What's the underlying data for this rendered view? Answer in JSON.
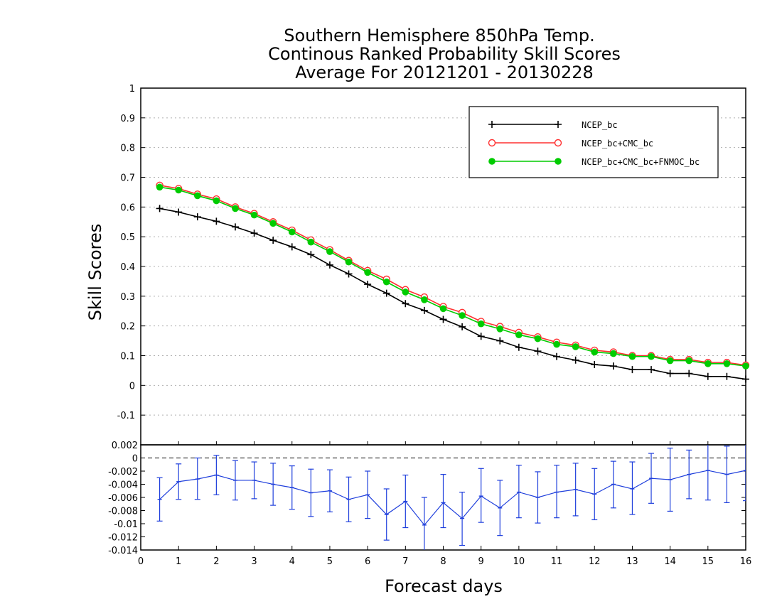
{
  "chart_data": [
    {
      "type": "line",
      "title": [
        "Southern Hemisphere 850hPa Temp.",
        "Continous Ranked Probability Skill Scores",
        "Average For 20121201 - 20130228"
      ],
      "xlabel": "Forecast days",
      "ylabel": "Skill Scores",
      "xlim": [
        0,
        16
      ],
      "ylim": [
        -0.2,
        1
      ],
      "x_ticks": [
        "0",
        "1",
        "2",
        "3",
        "4",
        "5",
        "6",
        "7",
        "8",
        "9",
        "10",
        "11",
        "12",
        "13",
        "14",
        "15",
        "16"
      ],
      "y_ticks": [
        "1",
        "0.9",
        "0.8",
        "0.7",
        "0.6",
        "0.5",
        "0.4",
        "0.3",
        "0.2",
        "0.1",
        "0",
        "-0.1"
      ],
      "grid": true,
      "legend_position": "top-right",
      "x": [
        0.5,
        1,
        1.5,
        2,
        2.5,
        3,
        3.5,
        4,
        4.5,
        5,
        5.5,
        6,
        6.5,
        7,
        7.5,
        8,
        8.5,
        9,
        9.5,
        10,
        10.5,
        11,
        11.5,
        12,
        12.5,
        13,
        13.5,
        14,
        14.5,
        15,
        15.5,
        16
      ],
      "series": [
        {
          "name": "NCEP_bc",
          "color": "#000000",
          "marker": "plus",
          "values": [
            0.595,
            0.583,
            0.567,
            0.552,
            0.533,
            0.512,
            0.488,
            0.466,
            0.44,
            0.405,
            0.375,
            0.34,
            0.31,
            0.275,
            0.252,
            0.222,
            0.197,
            0.165,
            0.15,
            0.128,
            0.115,
            0.097,
            0.085,
            0.07,
            0.065,
            0.053,
            0.053,
            0.04,
            0.04,
            0.03,
            0.03,
            0.021
          ]
        },
        {
          "name": "NCEP_bc+CMC_bc",
          "color": "#ff3030",
          "marker": "open-circle",
          "values": [
            0.673,
            0.662,
            0.643,
            0.627,
            0.6,
            0.578,
            0.55,
            0.522,
            0.489,
            0.456,
            0.42,
            0.386,
            0.357,
            0.322,
            0.297,
            0.265,
            0.245,
            0.215,
            0.198,
            0.178,
            0.163,
            0.145,
            0.135,
            0.118,
            0.112,
            0.1,
            0.1,
            0.087,
            0.087,
            0.077,
            0.077,
            0.068
          ]
        },
        {
          "name": "NCEP_bc+CMC_bc+FNMOC_bc",
          "color": "#00cc00",
          "marker": "filled-circle",
          "values": [
            0.667,
            0.657,
            0.638,
            0.621,
            0.595,
            0.573,
            0.545,
            0.516,
            0.482,
            0.45,
            0.415,
            0.38,
            0.348,
            0.314,
            0.288,
            0.258,
            0.235,
            0.207,
            0.19,
            0.17,
            0.157,
            0.138,
            0.13,
            0.112,
            0.107,
            0.097,
            0.097,
            0.083,
            0.083,
            0.073,
            0.073,
            0.065
          ]
        }
      ]
    },
    {
      "type": "line",
      "title": "",
      "xlabel": "Forecast days",
      "ylabel": "",
      "xlim": [
        0,
        16
      ],
      "ylim": [
        -0.014,
        0.002
      ],
      "x_ticks": [
        "0",
        "1",
        "2",
        "3",
        "4",
        "5",
        "6",
        "7",
        "8",
        "9",
        "10",
        "11",
        "12",
        "13",
        "14",
        "15",
        "16"
      ],
      "y_ticks": [
        "0.002",
        "0",
        "-0.002",
        "-0.004",
        "-0.006",
        "-0.008",
        "-0.01",
        "-0.012",
        "-0.014"
      ],
      "reference_line": 0,
      "x": [
        0.5,
        1,
        1.5,
        2,
        2.5,
        3,
        3.5,
        4,
        4.5,
        5,
        5.5,
        6,
        6.5,
        7,
        7.5,
        8,
        8.5,
        9,
        9.5,
        10,
        10.5,
        11,
        11.5,
        12,
        12.5,
        13,
        13.5,
        14,
        14.5,
        15,
        15.5,
        16
      ],
      "series": [
        {
          "name": "",
          "color": "#1f3fdc",
          "marker": "tick",
          "values": [
            -0.0063,
            -0.0036,
            -0.0032,
            -0.0026,
            -0.0034,
            -0.0034,
            -0.004,
            -0.0045,
            -0.0053,
            -0.005,
            -0.0063,
            -0.0056,
            -0.0086,
            -0.0066,
            -0.0102,
            -0.0068,
            -0.0092,
            -0.0058,
            -0.0076,
            -0.0052,
            -0.006,
            -0.0052,
            -0.0048,
            -0.0055,
            -0.004,
            -0.0047,
            -0.0031,
            -0.0033,
            -0.0025,
            -0.0019,
            -0.0025,
            -0.0019
          ],
          "error_low": [
            -0.0096,
            -0.0063,
            -0.0063,
            -0.0056,
            -0.0064,
            -0.0062,
            -0.0072,
            -0.0078,
            -0.0089,
            -0.0082,
            -0.0097,
            -0.0092,
            -0.0125,
            -0.0106,
            -0.0145,
            -0.0106,
            -0.0133,
            -0.0098,
            -0.0118,
            -0.0091,
            -0.0099,
            -0.0091,
            -0.0088,
            -0.0094,
            -0.0076,
            -0.0086,
            -0.0069,
            -0.0081,
            -0.0062,
            -0.0064,
            -0.0068,
            -0.0065
          ],
          "error_high": [
            -0.003,
            -0.0009,
            0.0,
            0.0004,
            -0.0004,
            -0.0006,
            -0.0008,
            -0.0012,
            -0.0017,
            -0.0018,
            -0.0029,
            -0.002,
            -0.0047,
            -0.0026,
            -0.006,
            -0.0025,
            -0.0052,
            -0.0016,
            -0.0034,
            -0.0011,
            -0.0021,
            -0.0011,
            -0.0008,
            -0.0016,
            -0.0005,
            -0.0006,
            0.0007,
            0.0015,
            0.0012,
            0.0028,
            0.0018,
            0.0028
          ]
        }
      ]
    }
  ]
}
